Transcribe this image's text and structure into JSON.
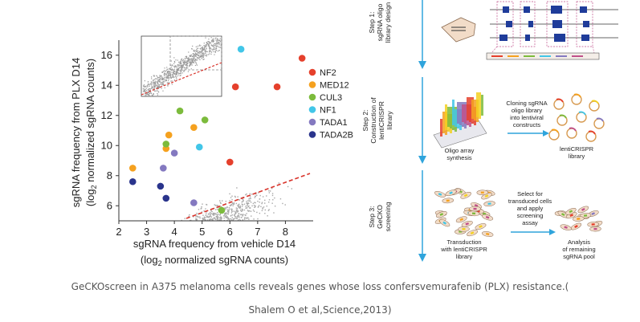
{
  "chart_data": {
    "type": "scatter",
    "xlabel_line1": "sgRNA frequency from vehicle D14",
    "xlabel_line2_pre": "(log",
    "xlabel_line2_sub": "2",
    "xlabel_line2_post": " normalized sgRNA counts)",
    "ylabel_line1": "sgRNA frequency from PLX D14",
    "ylabel_line2_pre": "(log",
    "ylabel_line2_sub": "2",
    "ylabel_line2_post": " normalized sgRNA counts)",
    "xlim": [
      2,
      9
    ],
    "ylim": [
      5,
      17
    ],
    "x_ticks": [
      2,
      3,
      4,
      5,
      6,
      7,
      8
    ],
    "y_ticks": [
      6,
      8,
      10,
      12,
      14,
      16
    ],
    "legend_position": "right",
    "series": [
      {
        "name": "NF2",
        "color": "#e5402c",
        "points": [
          [
            8.6,
            15.8
          ],
          [
            7.7,
            13.9
          ],
          [
            6.2,
            13.9
          ],
          [
            6.0,
            8.9
          ]
        ]
      },
      {
        "name": "MED12",
        "color": "#f5a11f",
        "points": [
          [
            2.5,
            8.5
          ],
          [
            3.8,
            10.7
          ],
          [
            3.7,
            9.8
          ],
          [
            4.7,
            11.2
          ]
        ]
      },
      {
        "name": "CUL3",
        "color": "#7cbb3c",
        "points": [
          [
            4.2,
            12.3
          ],
          [
            5.1,
            11.7
          ],
          [
            3.7,
            10.1
          ],
          [
            5.7,
            5.7
          ]
        ]
      },
      {
        "name": "NF1",
        "color": "#42c6e8",
        "points": [
          [
            6.4,
            16.4
          ],
          [
            4.9,
            9.9
          ]
        ]
      },
      {
        "name": "TADA1",
        "color": "#8479c0",
        "points": [
          [
            3.6,
            8.5
          ],
          [
            4.0,
            9.5
          ],
          [
            4.7,
            6.2
          ]
        ]
      },
      {
        "name": "TADA2B",
        "color": "#2a348c",
        "points": [
          [
            2.5,
            7.6
          ],
          [
            3.5,
            7.3
          ],
          [
            3.7,
            6.5
          ]
        ]
      }
    ]
  },
  "steps": [
    {
      "title_lines": [
        "Step 1:",
        "sgRNA oligo",
        "library design"
      ]
    },
    {
      "title_lines": [
        "Step 2:",
        "Construction of",
        "lentiCRISPR",
        "library"
      ]
    },
    {
      "title_lines": [
        "Step 3:",
        "GeCKO",
        "screening"
      ]
    }
  ],
  "labels": {
    "oligo_array": [
      "Oligo array",
      "synthesis"
    ],
    "cloning": [
      "Cloning sgRNA",
      "oligo library",
      "into lentiviral",
      "constructs"
    ],
    "lenticrispr_library": [
      "lentiCRISPR",
      "library"
    ],
    "select": [
      "Select for",
      "transduced cells",
      "and apply",
      "screening",
      "assay"
    ],
    "transduction": [
      "Transduction",
      "with lentiCRISPR",
      "library"
    ],
    "analysis": [
      "Analysis",
      "of remaining",
      "sgRNA pool"
    ]
  },
  "caption": {
    "line1": "GeCKOscreen in A375 melanoma cells reveals genes whose loss confersvemurafenib (PLX) resistance.(",
    "line2": "Shalem O et al,Science,2013)"
  }
}
